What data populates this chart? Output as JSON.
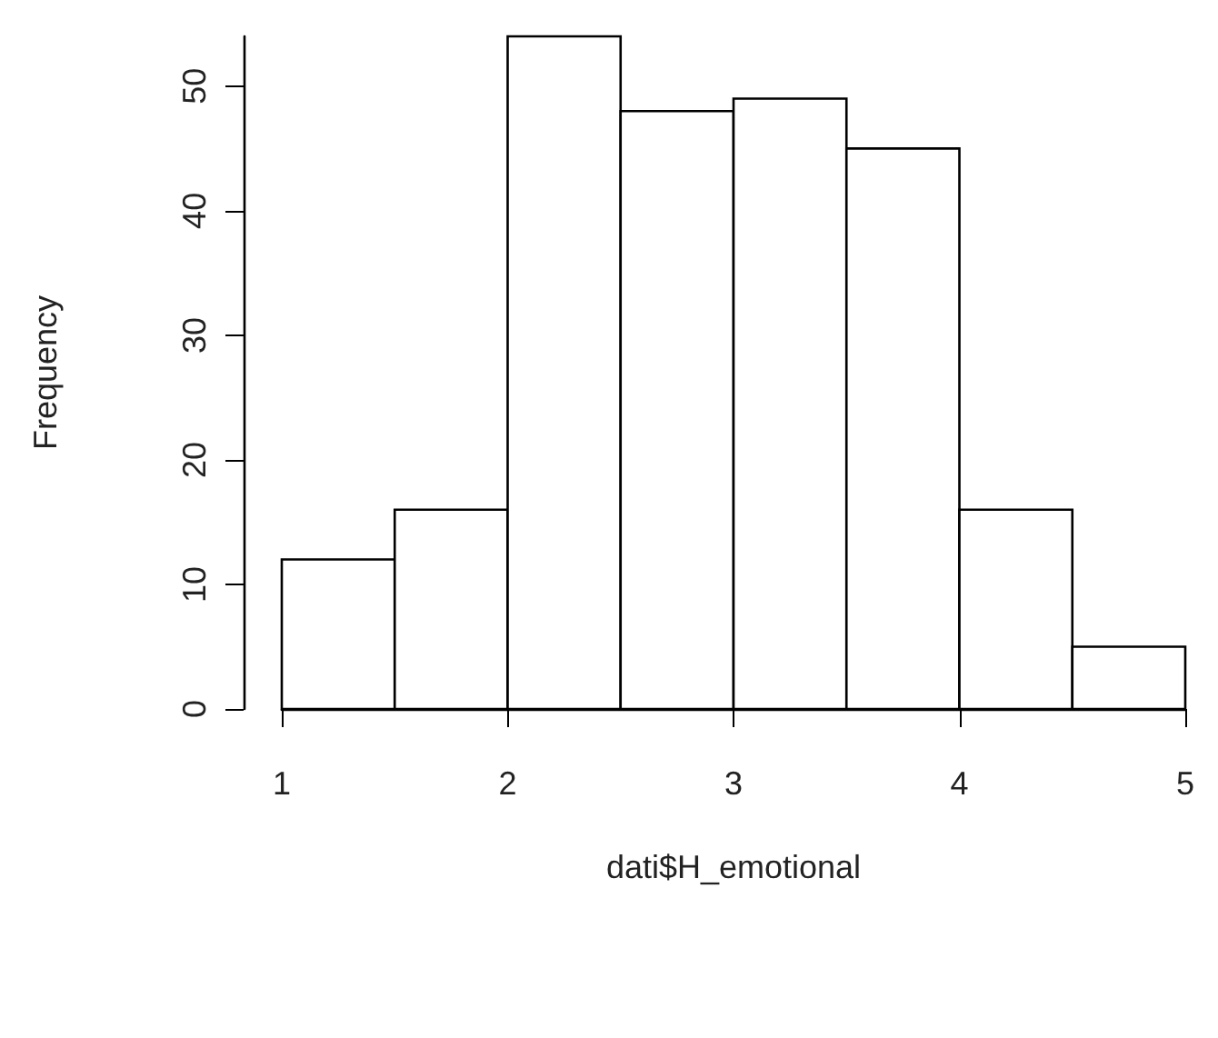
{
  "chart_data": {
    "type": "histogram",
    "xlabel": "dati$H_emotional",
    "ylabel": "Frequency",
    "bins": [
      1,
      1.5,
      2,
      2.5,
      3,
      3.5,
      4,
      4.5,
      5
    ],
    "values": [
      12,
      16,
      54,
      48,
      49,
      45,
      16,
      5
    ],
    "color": "#ffffff",
    "xlim": [
      1,
      5
    ],
    "xticks": [
      1,
      2,
      3,
      4,
      5
    ],
    "ylim": [
      0,
      54
    ],
    "yticks": [
      0,
      10,
      20,
      30,
      40,
      50
    ],
    "grid": false
  }
}
